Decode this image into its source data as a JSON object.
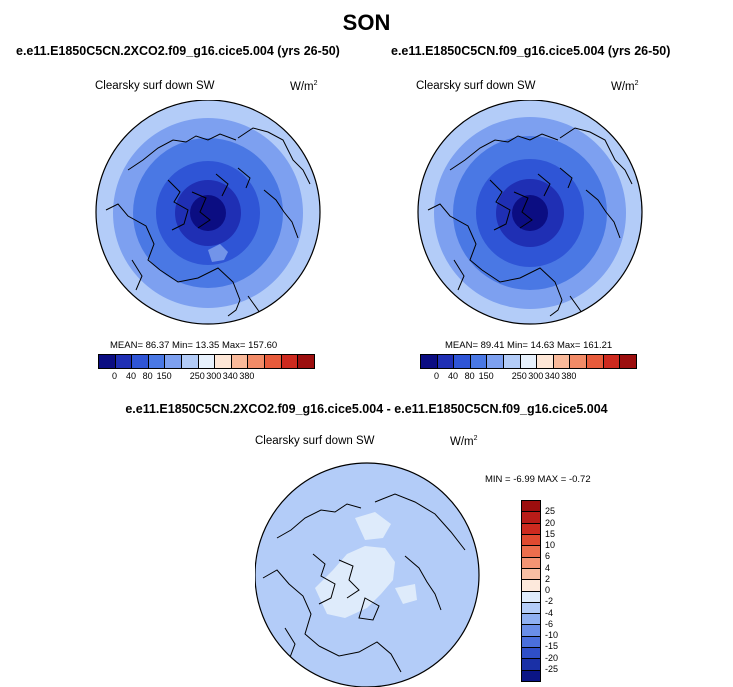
{
  "season": "SON",
  "panels": [
    {
      "title": "e.e11.E1850C5CN.2XCO2.f09_g16.cice5.004 (yrs 26-50)",
      "variable": "Clearsky surf down SW",
      "units_base": "W/m",
      "units_exp": "2",
      "stats": "MEAN=  86.37  Min=  13.35  Max= 157.60",
      "colorbar_labels": [
        "0",
        "40",
        "80",
        "150",
        "250",
        "300",
        "340",
        "380"
      ],
      "colorbar_colors": [
        "#0b0d82",
        "#1f2fb4",
        "#2f55d6",
        "#4a78e4",
        "#7da0f0",
        "#b3ccf8",
        "#e6f0fc",
        "#fde6d6",
        "#f9b99a",
        "#f28b67",
        "#e75b3b",
        "#cd2a1f",
        "#9c0e0e"
      ]
    },
    {
      "title": "e.e11.E1850C5CN.f09_g16.cice5.004 (yrs 26-50)",
      "variable": "Clearsky surf down SW",
      "units_base": "W/m",
      "units_exp": "2",
      "stats": "MEAN=  89.41  Min=  14.63  Max= 161.21",
      "colorbar_labels": [
        "0",
        "40",
        "80",
        "150",
        "250",
        "300",
        "340",
        "380"
      ],
      "colorbar_colors": [
        "#0b0d82",
        "#1f2fb4",
        "#2f55d6",
        "#4a78e4",
        "#7da0f0",
        "#b3ccf8",
        "#e6f0fc",
        "#fde6d6",
        "#f9b99a",
        "#f28b67",
        "#e75b3b",
        "#cd2a1f",
        "#9c0e0e"
      ]
    }
  ],
  "diff": {
    "title": "e.e11.E1850C5CN.2XCO2.f09_g16.cice5.004 - e.e11.E1850C5CN.f09_g16.cice5.004",
    "variable": "Clearsky surf down SW",
    "units_base": "W/m",
    "units_exp": "2",
    "stats": "MIN =  -6.99 MAX =  -0.72",
    "colorbar_labels": [
      "25",
      "20",
      "15",
      "10",
      "6",
      "4",
      "2",
      "0",
      "-2",
      "-4",
      "-6",
      "-10",
      "-15",
      "-20",
      "-25"
    ],
    "colorbar_colors": [
      "#9c0e0e",
      "#b81c18",
      "#cd2a1f",
      "#e04a30",
      "#ec6e4d",
      "#f39474",
      "#f8bea3",
      "#fde9dc",
      "#deebfb",
      "#b3ccf8",
      "#8fb0f2",
      "#6a8ee8",
      "#4a6fdc",
      "#2f4fc8",
      "#1a30a6",
      "#0b1585"
    ]
  }
}
